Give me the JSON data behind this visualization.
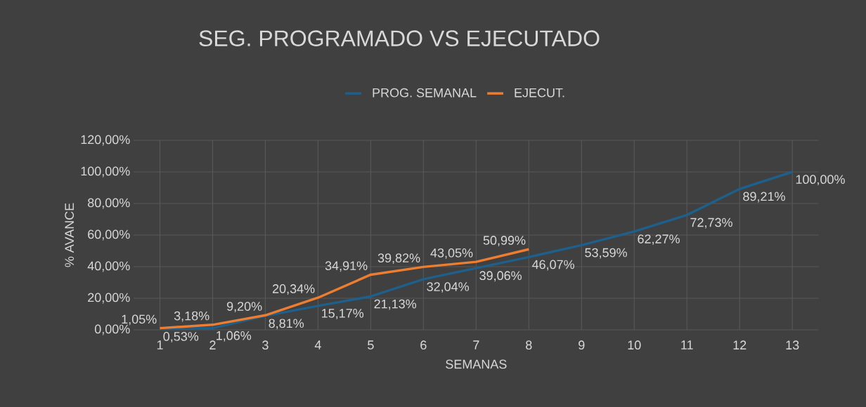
{
  "chart_data": {
    "type": "line",
    "title": "SEG. PROGRAMADO VS EJECUTADO",
    "xlabel": "SEMANAS",
    "ylabel": "% AVANCE",
    "categories": [
      "1",
      "2",
      "3",
      "4",
      "5",
      "6",
      "7",
      "8",
      "9",
      "10",
      "11",
      "12",
      "13"
    ],
    "series": [
      {
        "name": "PROG. SEMANAL",
        "color": "#1f5f8b",
        "values": [
          0.53,
          1.06,
          8.81,
          15.17,
          21.13,
          32.04,
          39.06,
          46.07,
          53.59,
          62.27,
          72.73,
          89.21,
          100
        ],
        "value_labels": [
          "0,53%",
          "1,06%",
          "8,81%",
          "15,17%",
          "21,13%",
          "32,04%",
          "39,06%",
          "46,07%",
          "53,59%",
          "62,27%",
          "72,73%",
          "89,21%",
          "100,00%"
        ]
      },
      {
        "name": "EJECUT.",
        "color": "#ed7d31",
        "values": [
          1.05,
          3.18,
          9.2,
          20.34,
          34.91,
          39.82,
          43.05,
          50.99,
          null,
          null,
          null,
          null,
          null
        ],
        "value_labels": [
          "1,05%",
          "3,18%",
          "9,20%",
          "20,34%",
          "34,91%",
          "39,82%",
          "43,05%",
          "50,99%",
          null,
          null,
          null,
          null,
          null
        ]
      }
    ],
    "ylim": [
      0,
      120
    ],
    "yticks": [
      {
        "value": 0,
        "label": "0,00%"
      },
      {
        "value": 20,
        "label": "20,00%"
      },
      {
        "value": 40,
        "label": "40,00%"
      },
      {
        "value": 60,
        "label": "60,00%"
      },
      {
        "value": 80,
        "label": "80,00%"
      },
      {
        "value": 100,
        "label": "100,00%"
      },
      {
        "value": 120,
        "label": "120,00%"
      }
    ],
    "grid": true,
    "legend": "top",
    "marker": "none",
    "line_style": "solid"
  }
}
